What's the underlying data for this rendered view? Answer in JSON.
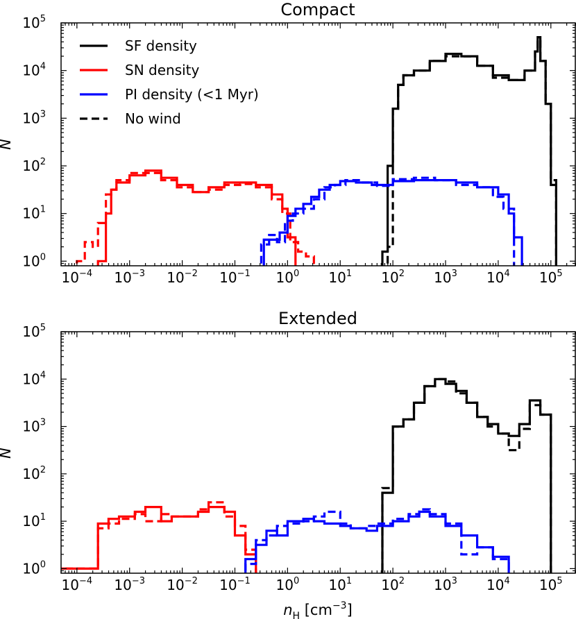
{
  "chart_data": [
    {
      "type": "histogram-step",
      "title": "Compact",
      "xlabel_var": "n",
      "xlabel_sub": "H",
      "xlabel_unit": "[cm",
      "xlabel_exp": "−3",
      "xlabel_close": "]",
      "ylabel": "N",
      "xscale": "log",
      "yscale": "log",
      "xlim": [
        5e-05,
        300000
      ],
      "ylim": [
        0.8,
        100000
      ],
      "xticks": [
        {
          "base": "10",
          "exp": "−4"
        },
        {
          "base": "10",
          "exp": "−3"
        },
        {
          "base": "10",
          "exp": "−2"
        },
        {
          "base": "10",
          "exp": "−1"
        },
        {
          "base": "10",
          "exp": "0"
        },
        {
          "base": "10",
          "exp": "1"
        },
        {
          "base": "10",
          "exp": "2"
        },
        {
          "base": "10",
          "exp": "3"
        },
        {
          "base": "10",
          "exp": "4"
        },
        {
          "base": "10",
          "exp": "5"
        }
      ],
      "yticks": [
        {
          "base": "10",
          "exp": "0"
        },
        {
          "base": "10",
          "exp": "1"
        },
        {
          "base": "10",
          "exp": "2"
        },
        {
          "base": "10",
          "exp": "3"
        },
        {
          "base": "10",
          "exp": "4"
        },
        {
          "base": "10",
          "exp": "5"
        }
      ],
      "legend": [
        {
          "label": "SF density",
          "color": "#000000",
          "dash": false
        },
        {
          "label": "SN density",
          "color": "#ff0000",
          "dash": false
        },
        {
          "label": "PI density (<1 Myr)",
          "color": "#0000ff",
          "dash": false
        },
        {
          "label": "No wind",
          "color": "#000000",
          "dash": true
        }
      ],
      "series": [
        {
          "name": "SF density",
          "color": "#000000",
          "dash": false,
          "edges_log": [
            1.8,
            1.9,
            2.0,
            2.1,
            2.2,
            2.4,
            2.7,
            3.0,
            3.3,
            3.6,
            3.9,
            4.2,
            4.5,
            4.7,
            4.75,
            4.8,
            4.9,
            5.0,
            5.1,
            5.2
          ],
          "logN": [
            0.2,
            2.0,
            3.2,
            3.7,
            3.9,
            4.0,
            4.2,
            4.35,
            4.3,
            4.1,
            3.9,
            3.8,
            4.0,
            4.4,
            4.7,
            4.2,
            3.3,
            1.6,
            0
          ]
        },
        {
          "name": "SF density (no wind)",
          "color": "#000000",
          "dash": true,
          "edges_log": [
            1.9,
            2.0,
            2.1,
            2.2,
            2.4,
            2.7,
            3.0,
            3.3,
            3.6,
            3.9,
            4.2,
            4.5,
            4.7,
            4.75,
            4.8,
            4.9,
            5.0,
            5.1,
            5.2
          ],
          "logN": [
            0.3,
            3.2,
            3.7,
            3.9,
            4.0,
            4.2,
            4.3,
            4.3,
            4.1,
            3.85,
            3.8,
            4.0,
            4.4,
            4.65,
            4.2,
            3.3,
            1.7,
            0
          ]
        },
        {
          "name": "SN density",
          "color": "#ff0000",
          "dash": false,
          "edges_log": [
            -3.6,
            -3.45,
            -3.35,
            -3.25,
            -3.0,
            -2.7,
            -2.4,
            -2.1,
            -1.8,
            -1.5,
            -1.2,
            -0.9,
            -0.6,
            -0.3,
            -0.1,
            0.0,
            0.15,
            0.3
          ],
          "logN": [
            0,
            1.0,
            1.5,
            1.65,
            1.8,
            1.9,
            1.75,
            1.6,
            1.45,
            1.55,
            1.65,
            1.65,
            1.6,
            1.4,
            1.1,
            0.5,
            0
          ]
        },
        {
          "name": "SN density (no wind)",
          "color": "#ff0000",
          "dash": true,
          "edges_log": [
            -4.0,
            -3.85,
            -3.7,
            -3.6,
            -3.45,
            -3.35,
            -3.25,
            -3.0,
            -2.7,
            -2.4,
            -2.1,
            -1.8,
            -1.5,
            -1.2,
            -0.9,
            -0.6,
            -0.3,
            -0.1,
            0.05,
            0.2,
            0.35,
            0.5,
            0.7
          ],
          "logN": [
            0,
            0.4,
            0.3,
            0.8,
            1.4,
            1.5,
            1.7,
            1.85,
            1.85,
            1.7,
            1.55,
            1.45,
            1.5,
            1.6,
            1.62,
            1.55,
            1.3,
            1.0,
            0.4,
            0.2,
            0.1,
            0
          ]
        },
        {
          "name": "PI density",
          "color": "#0000ff",
          "dash": false,
          "edges_log": [
            -0.45,
            -0.3,
            -0.15,
            0.0,
            0.15,
            0.3,
            0.45,
            0.6,
            0.8,
            1.0,
            1.3,
            1.6,
            2.0,
            2.4,
            2.8,
            3.2,
            3.6,
            4.0,
            4.2,
            4.3,
            4.45,
            4.6
          ],
          "logN": [
            0.45,
            0.45,
            0.6,
            0.95,
            1.1,
            1.2,
            1.35,
            1.5,
            1.6,
            1.68,
            1.65,
            1.6,
            1.68,
            1.7,
            1.7,
            1.65,
            1.55,
            1.4,
            1.0,
            0.5,
            0
          ]
        },
        {
          "name": "PI density (no wind)",
          "color": "#0000ff",
          "dash": true,
          "edges_log": [
            -0.5,
            -0.35,
            -0.2,
            -0.05,
            0.1,
            0.3,
            0.5,
            0.7,
            0.9,
            1.1,
            1.4,
            1.7,
            2.0,
            2.4,
            2.8,
            3.2,
            3.6,
            3.9,
            4.1,
            4.3,
            4.45
          ],
          "logN": [
            0.35,
            0.55,
            0.4,
            0.85,
            1.0,
            1.1,
            1.3,
            1.55,
            1.6,
            1.7,
            1.65,
            1.58,
            1.72,
            1.75,
            1.7,
            1.6,
            1.55,
            1.35,
            1.1,
            0
          ]
        }
      ]
    },
    {
      "type": "histogram-step",
      "title": "Extended",
      "xlabel_var": "n",
      "xlabel_sub": "H",
      "xlabel_unit": "[cm",
      "xlabel_exp": "−3",
      "xlabel_close": "]",
      "ylabel": "N",
      "xscale": "log",
      "yscale": "log",
      "xlim": [
        5e-05,
        300000
      ],
      "ylim": [
        0.8,
        100000
      ],
      "xticks": [
        {
          "base": "10",
          "exp": "−4"
        },
        {
          "base": "10",
          "exp": "−3"
        },
        {
          "base": "10",
          "exp": "−2"
        },
        {
          "base": "10",
          "exp": "−1"
        },
        {
          "base": "10",
          "exp": "0"
        },
        {
          "base": "10",
          "exp": "1"
        },
        {
          "base": "10",
          "exp": "2"
        },
        {
          "base": "10",
          "exp": "3"
        },
        {
          "base": "10",
          "exp": "4"
        },
        {
          "base": "10",
          "exp": "5"
        }
      ],
      "yticks": [
        {
          "base": "10",
          "exp": "0"
        },
        {
          "base": "10",
          "exp": "1"
        },
        {
          "base": "10",
          "exp": "2"
        },
        {
          "base": "10",
          "exp": "3"
        },
        {
          "base": "10",
          "exp": "4"
        },
        {
          "base": "10",
          "exp": "5"
        }
      ],
      "series": [
        {
          "name": "SF density",
          "color": "#000000",
          "dash": false,
          "edges_log": [
            1.8,
            2.0,
            2.2,
            2.4,
            2.6,
            2.8,
            3.0,
            3.2,
            3.4,
            3.6,
            3.8,
            4.0,
            4.2,
            4.4,
            4.6,
            4.8,
            5.0
          ],
          "logN": [
            1.6,
            3.0,
            3.15,
            3.5,
            3.85,
            4.0,
            3.9,
            3.75,
            3.5,
            3.2,
            3.05,
            2.85,
            2.8,
            3.05,
            3.55,
            3.25
          ]
        },
        {
          "name": "SF density (no wind)",
          "color": "#000000",
          "dash": true,
          "edges_log": [
            1.8,
            2.0,
            2.2,
            2.4,
            2.6,
            2.8,
            3.0,
            3.2,
            3.4,
            3.6,
            3.8,
            4.0,
            4.2,
            4.4,
            4.6,
            4.8,
            5.0
          ],
          "logN": [
            1.7,
            3.0,
            3.15,
            3.5,
            3.85,
            4.0,
            3.95,
            3.7,
            3.5,
            3.2,
            3.0,
            2.85,
            2.5,
            2.95,
            3.45,
            3.25
          ]
        },
        {
          "name": "SN density",
          "color": "#ff0000",
          "dash": false,
          "edges_log": [
            -4.4,
            -3.6,
            -3.4,
            -3.2,
            -2.9,
            -2.7,
            -2.4,
            -2.2,
            -2.0,
            -1.7,
            -1.5,
            -1.2,
            -1.0,
            -0.8,
            -0.6,
            -0.4
          ],
          "logN": [
            0,
            0.95,
            1.05,
            1.1,
            1.2,
            1.3,
            1.0,
            1.1,
            1.1,
            1.2,
            1.3,
            1.2,
            0.7,
            0.3,
            0
          ]
        },
        {
          "name": "SN density (no wind)",
          "color": "#ff0000",
          "dash": true,
          "edges_log": [
            -4.4,
            -3.6,
            -3.4,
            -3.2,
            -2.9,
            -2.7,
            -2.4,
            -2.2,
            -2.0,
            -1.7,
            -1.5,
            -1.2,
            -1.0,
            -0.8,
            -0.6,
            -0.4
          ],
          "logN": [
            0,
            0.85,
            0.95,
            1.05,
            1.15,
            1.0,
            1.15,
            1.1,
            1.1,
            1.25,
            1.4,
            1.1,
            0.9,
            0.4,
            0
          ]
        },
        {
          "name": "PI density",
          "color": "#0000ff",
          "dash": false,
          "edges_log": [
            -0.8,
            -0.6,
            -0.4,
            -0.2,
            0.0,
            0.3,
            0.5,
            0.7,
            1.0,
            1.2,
            1.5,
            1.7,
            2.0,
            2.3,
            2.5,
            2.7,
            3.0,
            3.3,
            3.6,
            3.9,
            4.2,
            4.4
          ],
          "logN": [
            0.2,
            0.5,
            0.8,
            0.7,
            1.0,
            1.05,
            1.0,
            0.95,
            0.9,
            0.85,
            0.8,
            0.9,
            1.0,
            1.1,
            1.2,
            1.1,
            0.9,
            0.7,
            0.45,
            0.25,
            0
          ]
        },
        {
          "name": "PI density (no wind)",
          "color": "#0000ff",
          "dash": true,
          "edges_log": [
            -0.8,
            -0.6,
            -0.4,
            -0.2,
            0.0,
            0.3,
            0.5,
            0.7,
            1.0,
            1.2,
            1.5,
            1.7,
            2.0,
            2.3,
            2.5,
            2.7,
            3.0,
            3.3,
            3.6,
            3.9,
            4.2,
            4.4
          ],
          "logN": [
            0.1,
            0.6,
            0.7,
            0.9,
            0.95,
            1.0,
            1.1,
            1.2,
            0.95,
            0.85,
            0.9,
            0.95,
            1.05,
            1.15,
            1.25,
            1.15,
            0.95,
            0.3,
            0.45,
            0.2,
            0
          ]
        }
      ]
    }
  ]
}
